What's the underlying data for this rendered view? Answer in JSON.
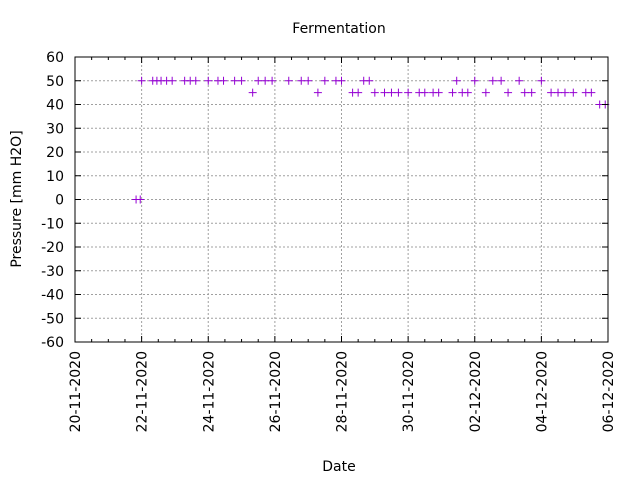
{
  "chart_data": {
    "type": "scatter",
    "title": "Fermentation",
    "xlabel": "Date",
    "ylabel": "Pressure [mm H2O]",
    "x_ticks": [
      "20-11-2020",
      "22-11-2020",
      "24-11-2020",
      "26-11-2020",
      "28-11-2020",
      "30-11-2020",
      "02-12-2020",
      "04-12-2020",
      "06-12-2020"
    ],
    "y_ticks": [
      60,
      50,
      40,
      30,
      20,
      10,
      0,
      -10,
      -20,
      -30,
      -40,
      -50,
      -60
    ],
    "xlim": [
      "2020-11-20",
      "2020-12-06"
    ],
    "ylim": [
      -60,
      60
    ],
    "grid": true,
    "marker_color": "#9400d3",
    "points": [
      {
        "x": "2020-11-21T20:00",
        "y": 0
      },
      {
        "x": "2020-11-21T23:00",
        "y": 0
      },
      {
        "x": "2020-11-22T00:00",
        "y": 50
      },
      {
        "x": "2020-11-22T08:00",
        "y": 50
      },
      {
        "x": "2020-11-22T11:00",
        "y": 50
      },
      {
        "x": "2020-11-22T14:00",
        "y": 50
      },
      {
        "x": "2020-11-22T18:00",
        "y": 50
      },
      {
        "x": "2020-11-22T22:00",
        "y": 50
      },
      {
        "x": "2020-11-23T07:00",
        "y": 50
      },
      {
        "x": "2020-11-23T11:00",
        "y": 50
      },
      {
        "x": "2020-11-23T15:00",
        "y": 50
      },
      {
        "x": "2020-11-24T00:00",
        "y": 50
      },
      {
        "x": "2020-11-24T07:00",
        "y": 50
      },
      {
        "x": "2020-11-24T11:00",
        "y": 50
      },
      {
        "x": "2020-11-24T19:00",
        "y": 50
      },
      {
        "x": "2020-11-25T00:00",
        "y": 50
      },
      {
        "x": "2020-11-25T08:00",
        "y": 45
      },
      {
        "x": "2020-11-25T12:00",
        "y": 50
      },
      {
        "x": "2020-11-25T17:00",
        "y": 50
      },
      {
        "x": "2020-11-25T22:00",
        "y": 50
      },
      {
        "x": "2020-11-26T10:00",
        "y": 50
      },
      {
        "x": "2020-11-26T19:00",
        "y": 50
      },
      {
        "x": "2020-11-27T00:00",
        "y": 50
      },
      {
        "x": "2020-11-27T07:00",
        "y": 45
      },
      {
        "x": "2020-11-27T12:00",
        "y": 50
      },
      {
        "x": "2020-11-27T20:00",
        "y": 50
      },
      {
        "x": "2020-11-28T00:00",
        "y": 50
      },
      {
        "x": "2020-11-28T08:00",
        "y": 45
      },
      {
        "x": "2020-11-28T12:00",
        "y": 45
      },
      {
        "x": "2020-11-28T16:00",
        "y": 50
      },
      {
        "x": "2020-11-28T20:00",
        "y": 50
      },
      {
        "x": "2020-11-29T00:00",
        "y": 45
      },
      {
        "x": "2020-11-29T07:00",
        "y": 45
      },
      {
        "x": "2020-11-29T12:00",
        "y": 45
      },
      {
        "x": "2020-11-29T17:00",
        "y": 45
      },
      {
        "x": "2020-11-30T00:00",
        "y": 45
      },
      {
        "x": "2020-11-30T08:00",
        "y": 45
      },
      {
        "x": "2020-11-30T12:00",
        "y": 45
      },
      {
        "x": "2020-11-30T18:00",
        "y": 45
      },
      {
        "x": "2020-11-30T22:00",
        "y": 45
      },
      {
        "x": "2020-12-01T08:00",
        "y": 45
      },
      {
        "x": "2020-12-01T11:00",
        "y": 50
      },
      {
        "x": "2020-12-01T15:00",
        "y": 45
      },
      {
        "x": "2020-12-01T19:00",
        "y": 45
      },
      {
        "x": "2020-12-02T00:00",
        "y": 50
      },
      {
        "x": "2020-12-02T08:00",
        "y": 45
      },
      {
        "x": "2020-12-02T13:00",
        "y": 50
      },
      {
        "x": "2020-12-02T19:00",
        "y": 50
      },
      {
        "x": "2020-12-03T00:00",
        "y": 45
      },
      {
        "x": "2020-12-03T08:00",
        "y": 50
      },
      {
        "x": "2020-12-03T12:00",
        "y": 45
      },
      {
        "x": "2020-12-03T17:00",
        "y": 45
      },
      {
        "x": "2020-12-04T00:00",
        "y": 50
      },
      {
        "x": "2020-12-04T07:00",
        "y": 45
      },
      {
        "x": "2020-12-04T12:00",
        "y": 45
      },
      {
        "x": "2020-12-04T17:00",
        "y": 45
      },
      {
        "x": "2020-12-04T23:00",
        "y": 45
      },
      {
        "x": "2020-12-05T08:00",
        "y": 45
      },
      {
        "x": "2020-12-05T12:00",
        "y": 45
      },
      {
        "x": "2020-12-05T18:00",
        "y": 40
      },
      {
        "x": "2020-12-05T22:00",
        "y": 40
      }
    ]
  }
}
